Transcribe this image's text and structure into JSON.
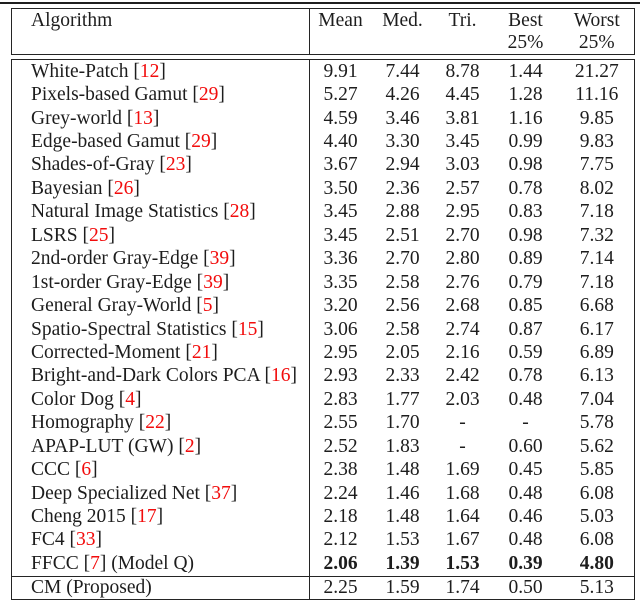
{
  "table": {
    "header": {
      "algorithm": "Algorithm",
      "mean": "Mean",
      "med": "Med.",
      "tri": "Tri.",
      "best_line1": "Best",
      "best_line2": "25%",
      "worst_line1": "Worst",
      "worst_line2": "25%"
    },
    "rows": [
      {
        "label_before": "White-Patch [",
        "cite": "12",
        "label_after": "]",
        "mean": "9.91",
        "med": "7.44",
        "tri": "8.78",
        "best": "1.44",
        "worst": "21.27",
        "bold": false
      },
      {
        "label_before": "Pixels-based Gamut [",
        "cite": "29",
        "label_after": "]",
        "mean": "5.27",
        "med": "4.26",
        "tri": "4.45",
        "best": "1.28",
        "worst": "11.16",
        "bold": false
      },
      {
        "label_before": "Grey-world [",
        "cite": "13",
        "label_after": "]",
        "mean": "4.59",
        "med": "3.46",
        "tri": "3.81",
        "best": "1.16",
        "worst": "9.85",
        "bold": false
      },
      {
        "label_before": "Edge-based Gamut [",
        "cite": "29",
        "label_after": "]",
        "mean": "4.40",
        "med": "3.30",
        "tri": "3.45",
        "best": "0.99",
        "worst": "9.83",
        "bold": false
      },
      {
        "label_before": "Shades-of-Gray [",
        "cite": "23",
        "label_after": "]",
        "mean": "3.67",
        "med": "2.94",
        "tri": "3.03",
        "best": "0.98",
        "worst": "7.75",
        "bold": false
      },
      {
        "label_before": "Bayesian [",
        "cite": "26",
        "label_after": "]",
        "mean": "3.50",
        "med": "2.36",
        "tri": "2.57",
        "best": "0.78",
        "worst": "8.02",
        "bold": false
      },
      {
        "label_before": "Natural Image Statistics [",
        "cite": "28",
        "label_after": "]",
        "mean": "3.45",
        "med": "2.88",
        "tri": "2.95",
        "best": "0.83",
        "worst": "7.18",
        "bold": false
      },
      {
        "label_before": "LSRS [",
        "cite": "25",
        "label_after": "]",
        "mean": "3.45",
        "med": "2.51",
        "tri": "2.70",
        "best": "0.98",
        "worst": "7.32",
        "bold": false
      },
      {
        "label_before": "2nd-order Gray-Edge [",
        "cite": "39",
        "label_after": "]",
        "mean": "3.36",
        "med": "2.70",
        "tri": "2.80",
        "best": "0.89",
        "worst": "7.14",
        "bold": false
      },
      {
        "label_before": "1st-order Gray-Edge [",
        "cite": "39",
        "label_after": "]",
        "mean": "3.35",
        "med": "2.58",
        "tri": "2.76",
        "best": "0.79",
        "worst": "7.18",
        "bold": false
      },
      {
        "label_before": "General Gray-World [",
        "cite": "5",
        "label_after": "]",
        "mean": "3.20",
        "med": "2.56",
        "tri": "2.68",
        "best": "0.85",
        "worst": "6.68",
        "bold": false
      },
      {
        "label_before": "Spatio-Spectral Statistics [",
        "cite": "15",
        "label_after": "]",
        "mean": "3.06",
        "med": "2.58",
        "tri": "2.74",
        "best": "0.87",
        "worst": "6.17",
        "bold": false
      },
      {
        "label_before": "Corrected-Moment [",
        "cite": "21",
        "label_after": "]",
        "mean": "2.95",
        "med": "2.05",
        "tri": "2.16",
        "best": "0.59",
        "worst": "6.89",
        "bold": false
      },
      {
        "label_before": "Bright-and-Dark Colors PCA [",
        "cite": "16",
        "label_after": "]",
        "mean": "2.93",
        "med": "2.33",
        "tri": "2.42",
        "best": "0.78",
        "worst": "6.13",
        "bold": false
      },
      {
        "label_before": "Color Dog [",
        "cite": "4",
        "label_after": "]",
        "mean": "2.83",
        "med": "1.77",
        "tri": "2.03",
        "best": "0.48",
        "worst": "7.04",
        "bold": false
      },
      {
        "label_before": "Homography [",
        "cite": "22",
        "label_after": "]",
        "mean": "2.55",
        "med": "1.70",
        "tri": "-",
        "best": "-",
        "worst": "5.78",
        "bold": false
      },
      {
        "label_before": "APAP-LUT (GW) [",
        "cite": "2",
        "label_after": "]",
        "mean": "2.52",
        "med": "1.83",
        "tri": "-",
        "best": "0.60",
        "worst": "5.62",
        "bold": false
      },
      {
        "label_before": "CCC [",
        "cite": "6",
        "label_after": "]",
        "mean": "2.38",
        "med": "1.48",
        "tri": "1.69",
        "best": "0.45",
        "worst": "5.85",
        "bold": false
      },
      {
        "label_before": "Deep Specialized Net [",
        "cite": "37",
        "label_after": "]",
        "mean": "2.24",
        "med": "1.46",
        "tri": "1.68",
        "best": "0.48",
        "worst": "6.08",
        "bold": false
      },
      {
        "label_before": "Cheng 2015 [",
        "cite": "17",
        "label_after": "]",
        "mean": "2.18",
        "med": "1.48",
        "tri": "1.64",
        "best": "0.46",
        "worst": "5.03",
        "bold": false
      },
      {
        "label_before": "FC4 [",
        "cite": "33",
        "label_after": "]",
        "mean": "2.12",
        "med": "1.53",
        "tri": "1.67",
        "best": "0.48",
        "worst": "6.08",
        "bold": false
      },
      {
        "label_before": "FFCC [",
        "cite": "7",
        "label_after": "] (Model Q)",
        "mean": "2.06",
        "med": "1.39",
        "tri": "1.53",
        "best": "0.39",
        "worst": "4.80",
        "bold": true
      }
    ],
    "final_row": {
      "label_before": "CM (Proposed)",
      "cite": "",
      "label_after": "",
      "mean": "2.25",
      "med": "1.59",
      "tri": "1.74",
      "best": "0.50",
      "worst": "5.13",
      "bold": false
    }
  },
  "colors": {
    "citation_red": "#f20c0c",
    "text": "#1d1d1d",
    "border": "#242424",
    "background": "#ffffff"
  }
}
